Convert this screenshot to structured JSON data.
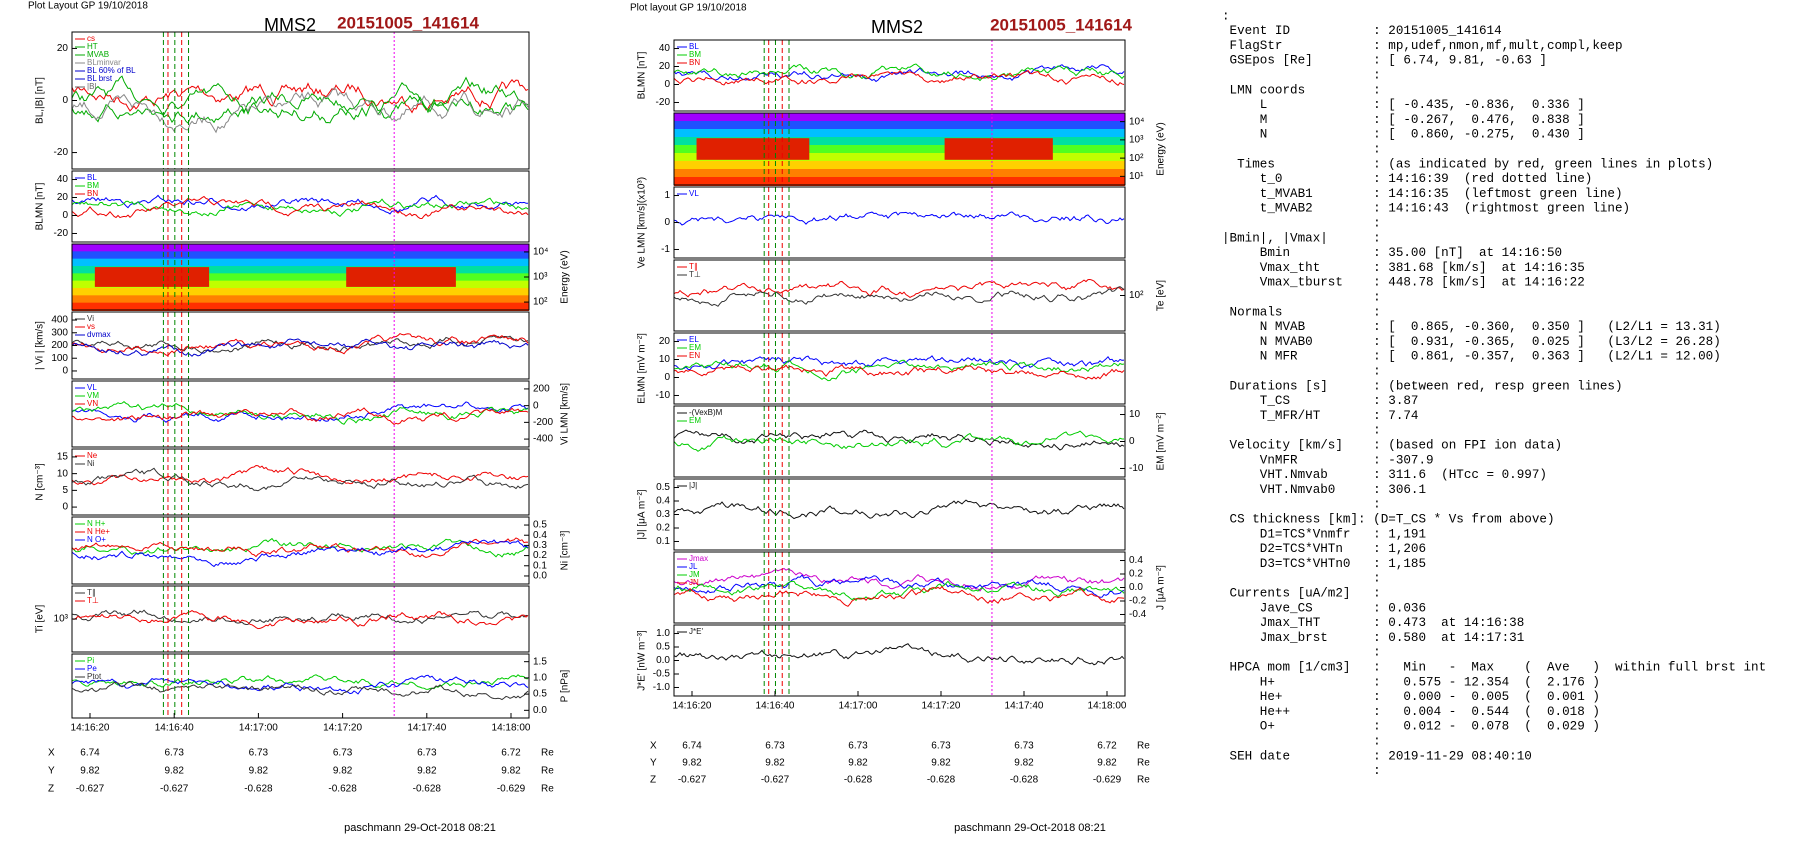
{
  "plots": [
    {
      "header": "Plot Layout GP 19/10/2018",
      "title": "MMS2",
      "event": "20151005_141614",
      "panels": [
        {
          "side": "left",
          "ylabel": "BL,|B| [nT]",
          "ticks": [
            "20",
            "0",
            "-20"
          ],
          "legend": [
            {
              "text": "cs",
              "color": "#e00"
            },
            {
              "text": "HT",
              "color": "#0a0"
            },
            {
              "text": "MVAB",
              "color": "#0a0"
            },
            {
              "text": "BLminvar",
              "color": "#888"
            },
            {
              "text": "BL 60% of BL",
              "color": "#00c"
            },
            {
              "text": "BL brst",
              "color": "#00c"
            },
            {
              "text": "|B|",
              "color": "#666"
            }
          ]
        },
        {
          "side": "left",
          "ylabel": "BLMN [nT]",
          "ticks": [
            "40",
            "20",
            "0",
            "-20"
          ],
          "legend": [
            {
              "text": "BL",
              "color": "#00f"
            },
            {
              "text": "BM",
              "color": "#0c0"
            },
            {
              "text": "BN",
              "color": "#e00"
            }
          ]
        },
        {
          "side": "right",
          "ylabel": "Energy (eV)",
          "ticks": [
            "10⁴",
            "10³",
            "10²"
          ],
          "legend": []
        },
        {
          "side": "left",
          "ylabel": "| Vi | [km/s]",
          "ticks": [
            "400",
            "300",
            "200",
            "100",
            "0"
          ],
          "legend": [
            {
              "text": "Vi",
              "color": "#333"
            },
            {
              "text": "vs",
              "color": "#e00"
            },
            {
              "text": "dvmax",
              "color": "#00c"
            }
          ]
        },
        {
          "side": "right",
          "ylabel": "Vi LMN [km/s]",
          "ticks": [
            "200",
            "0",
            "-200",
            "-400"
          ],
          "legend": [
            {
              "text": "VL",
              "color": "#00f"
            },
            {
              "text": "VM",
              "color": "#0c0"
            },
            {
              "text": "VN",
              "color": "#e00"
            }
          ]
        },
        {
          "side": "left",
          "ylabel": "N [cm⁻³]",
          "ticks": [
            "15",
            "10",
            "5",
            "0"
          ],
          "legend": [
            {
              "text": "Ne",
              "color": "#e00"
            },
            {
              "text": "Ni",
              "color": "#333"
            }
          ]
        },
        {
          "side": "right",
          "ylabel": "Ni [cm⁻³]",
          "ticks": [
            "0.5",
            "0.4",
            "0.3",
            "0.2",
            "0.1",
            "0.0"
          ],
          "legend": [
            {
              "text": "N H+",
              "color": "#0c0"
            },
            {
              "text": "N He+",
              "color": "#e00"
            },
            {
              "text": "N O+",
              "color": "#00f"
            }
          ]
        },
        {
          "side": "left",
          "ylabel": "Ti [eV]",
          "ticks": [
            "10³"
          ],
          "legend": [
            {
              "text": "T∥",
              "color": "#333"
            },
            {
              "text": "T⊥",
              "color": "#e00"
            }
          ]
        },
        {
          "side": "right",
          "ylabel": "P [nPa]",
          "ticks": [
            "1.5",
            "1.0",
            "0.5",
            "0.0"
          ],
          "legend": [
            {
              "text": "Pi",
              "color": "#0c0"
            },
            {
              "text": "Pe",
              "color": "#00f"
            },
            {
              "text": "Ptot",
              "color": "#333"
            }
          ]
        }
      ],
      "times": [
        "14:16:20",
        "14:16:40",
        "14:17:00",
        "14:17:20",
        "14:17:40",
        "14:18:00"
      ],
      "ephem": [
        {
          "name": "X",
          "vals": [
            "6.74",
            "6.73",
            "6.73",
            "6.73",
            "6.73",
            "6.72"
          ],
          "unit": "Re"
        },
        {
          "name": "Y",
          "vals": [
            "9.82",
            "9.82",
            "9.82",
            "9.82",
            "9.82",
            "9.82"
          ],
          "unit": "Re"
        },
        {
          "name": "Z",
          "vals": [
            "-0.627",
            "-0.627",
            "-0.628",
            "-0.628",
            "-0.628",
            "-0.629"
          ],
          "unit": "Re"
        }
      ],
      "footer": "paschmann 29-Oct-2018 08:21"
    },
    {
      "header": "Plot layout GP 19/10/2018",
      "title": "MMS2",
      "event": "20151005_141614",
      "panels": [
        {
          "side": "left",
          "ylabel": "BLMN [nT]",
          "ticks": [
            "40",
            "20",
            "0",
            "-20"
          ],
          "legend": [
            {
              "text": "BL",
              "color": "#00f"
            },
            {
              "text": "BM",
              "color": "#0c0"
            },
            {
              "text": "BN",
              "color": "#e00"
            }
          ]
        },
        {
          "side": "right",
          "ylabel": "Energy (eV)",
          "ticks": [
            "10⁴",
            "10³",
            "10²",
            "10¹"
          ],
          "legend": []
        },
        {
          "side": "left",
          "ylabel": "Ve LMN [km/s](x10³)",
          "ticks": [
            "1",
            "0",
            "-1"
          ],
          "legend": [
            {
              "text": "VL",
              "color": "#00f"
            }
          ]
        },
        {
          "side": "right",
          "ylabel": "Te [eV]",
          "ticks": [
            "10²"
          ],
          "legend": [
            {
              "text": "T∥",
              "color": "#e00"
            },
            {
              "text": "T⊥",
              "color": "#333"
            }
          ]
        },
        {
          "side": "left",
          "ylabel": "ELMN [mV m⁻²]",
          "ticks": [
            "20",
            "10",
            "0",
            "-10"
          ],
          "legend": [
            {
              "text": "EL",
              "color": "#00f"
            },
            {
              "text": "EM",
              "color": "#0c0"
            },
            {
              "text": "EN",
              "color": "#e00"
            }
          ]
        },
        {
          "side": "right",
          "ylabel": "EM [mV m⁻²]",
          "ticks": [
            "10",
            "0",
            "-10"
          ],
          "legend": [
            {
              "text": "-(VexB)M",
              "color": "#111"
            },
            {
              "text": "EM",
              "color": "#0c0"
            }
          ]
        },
        {
          "side": "left",
          "ylabel": "|J| [μA m⁻²]",
          "ticks": [
            "0.5",
            "0.4",
            "0.3",
            "0.2",
            "0.1"
          ],
          "legend": [
            {
              "text": "|J|",
              "color": "#111"
            }
          ]
        },
        {
          "side": "right",
          "ylabel": "J [μA m⁻²]",
          "ticks": [
            "0.4",
            "0.2",
            "0.0",
            "-0.2",
            "-0.4"
          ],
          "legend": [
            {
              "text": "Jmax",
              "color": "#c0c"
            },
            {
              "text": "JL",
              "color": "#00f"
            },
            {
              "text": "JM",
              "color": "#0c0"
            },
            {
              "text": "JN",
              "color": "#e00"
            }
          ]
        },
        {
          "side": "left",
          "ylabel": "J*E' [nW m⁻³]",
          "ticks": [
            "1.0",
            "0.5",
            "0.0",
            "-0.5",
            "-1.0"
          ],
          "legend": [
            {
              "text": "J*E'",
              "color": "#111"
            }
          ]
        }
      ],
      "times": [
        "14:16:20",
        "14:16:40",
        "14:17:00",
        "14:17:20",
        "14:17:40",
        "14:18:00"
      ],
      "ephem": [
        {
          "name": "X",
          "vals": [
            "6.74",
            "6.73",
            "6.73",
            "6.73",
            "6.73",
            "6.72"
          ],
          "unit": "Re"
        },
        {
          "name": "Y",
          "vals": [
            "9.82",
            "9.82",
            "9.82",
            "9.82",
            "9.82",
            "9.82"
          ],
          "unit": "Re"
        },
        {
          "name": "Z",
          "vals": [
            "-0.627",
            "-0.627",
            "-0.628",
            "-0.628",
            "-0.628",
            "-0.629"
          ],
          "unit": "Re"
        }
      ],
      "footer": "paschmann 29-Oct-2018 08:21"
    }
  ],
  "info": [
    ":",
    " Event ID           : 20151005_141614",
    " FlagStr            : mp,udef,nmon,mf,mult,compl,keep",
    " GSEpos [Re]        : [ 6.74, 9.81, -0.63 ]",
    "                    :",
    " LMN coords         :",
    "     L              : [ -0.435, -0.836,  0.336 ]",
    "     M              : [ -0.267,  0.476,  0.838 ]",
    "     N              : [  0.860, -0.275,  0.430 ]",
    "                    :",
    "  Times             : (as indicated by red, green lines in plots)",
    "     t_0            : 14:16:39  (red dotted line)",
    "     t_MVAB1        : 14:16:35  (leftmost green line)",
    "     t_MVAB2        : 14:16:43  (rightmost green line)",
    "                    :",
    "|Bmin|, |Vmax|      :",
    "     Bmin           : 35.00 [nT]  at 14:16:50",
    "     Vmax_tht       : 381.68 [km/s]  at 14:16:35",
    "     Vmax_tburst    : 448.78 [km/s]  at 14:16:22",
    "                    :",
    " Normals            :",
    "     N MVAB         : [  0.865, -0.360,  0.350 ]   (L2/L1 = 13.31)",
    "     N MVAB0        : [  0.931, -0.365,  0.025 ]   (L3/L2 = 26.28)",
    "     N MFR          : [  0.861, -0.357,  0.363 ]   (L2/L1 = 12.00)",
    "                    :",
    " Durations [s]      : (between red, resp green lines)",
    "     T_CS           : 3.87",
    "     T_MFR/HT       : 7.74",
    "                    :",
    " Velocity [km/s]    : (based on FPI ion data)",
    "     VnMFR          : -307.9",
    "     VHT.Nmvab      : 311.6  (HTcc = 0.997)",
    "     VHT.Nmvab0     : 306.1",
    "                    :",
    " CS thickness [km]: (D=T_CS * Vs from above)",
    "     D1=TCS*Vnmfr   : 1,191",
    "     D2=TCS*VHTn    : 1,206",
    "     D3=TCS*VHTn0   : 1,185",
    "                    :",
    " Currents [uA/m2]   :",
    "     Jave_CS        : 0.036",
    "     Jmax_THT       : 0.473  at 14:16:38",
    "     Jmax_brst      : 0.580  at 14:17:31",
    "                    :",
    " HPCA mom [1/cm3]   :   Min   -  Max    (  Ave   )  within full brst int",
    "     H+             :   0.575 - 12.354  (  2.176 )",
    "     He+            :   0.000 -  0.005  (  0.001 )",
    "     He++           :   0.004 -  0.544  (  0.018 )",
    "     O+             :   0.012 -  0.078  (  0.029 )",
    "                    :",
    " SEH date           : 2019-11-29 08:40:10",
    "                    :"
  ]
}
